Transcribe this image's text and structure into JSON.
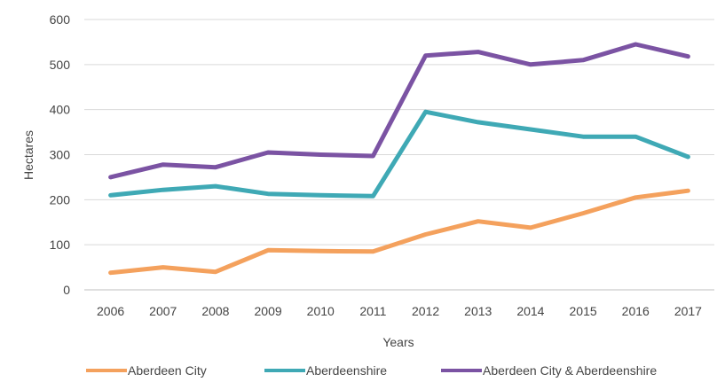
{
  "chart_data": {
    "type": "line",
    "title": "",
    "xlabel": "Years",
    "ylabel": "Hectares",
    "ylim": [
      0,
      600
    ],
    "yticks": [
      "0",
      "100",
      "200",
      "300",
      "400",
      "500",
      "600"
    ],
    "categories": [
      "2006",
      "2007",
      "2008",
      "2009",
      "2010",
      "2011",
      "2012",
      "2013",
      "2014",
      "2015",
      "2016",
      "2017"
    ],
    "grid": "horizontal",
    "legend_position": "bottom",
    "series": [
      {
        "name": "Aberdeen City",
        "color": "#f4a15d",
        "values": [
          38,
          50,
          40,
          88,
          86,
          85,
          123,
          152,
          138,
          170,
          205,
          220
        ]
      },
      {
        "name": "Aberdeenshire",
        "color": "#3fa9b5",
        "values": [
          210,
          222,
          230,
          213,
          210,
          208,
          395,
          372,
          356,
          340,
          340,
          295
        ]
      },
      {
        "name": "Aberdeen City & Aberdeenshire",
        "color": "#7b53a3",
        "values": [
          250,
          278,
          272,
          305,
          300,
          297,
          520,
          528,
          500,
          510,
          545,
          518
        ]
      }
    ]
  }
}
